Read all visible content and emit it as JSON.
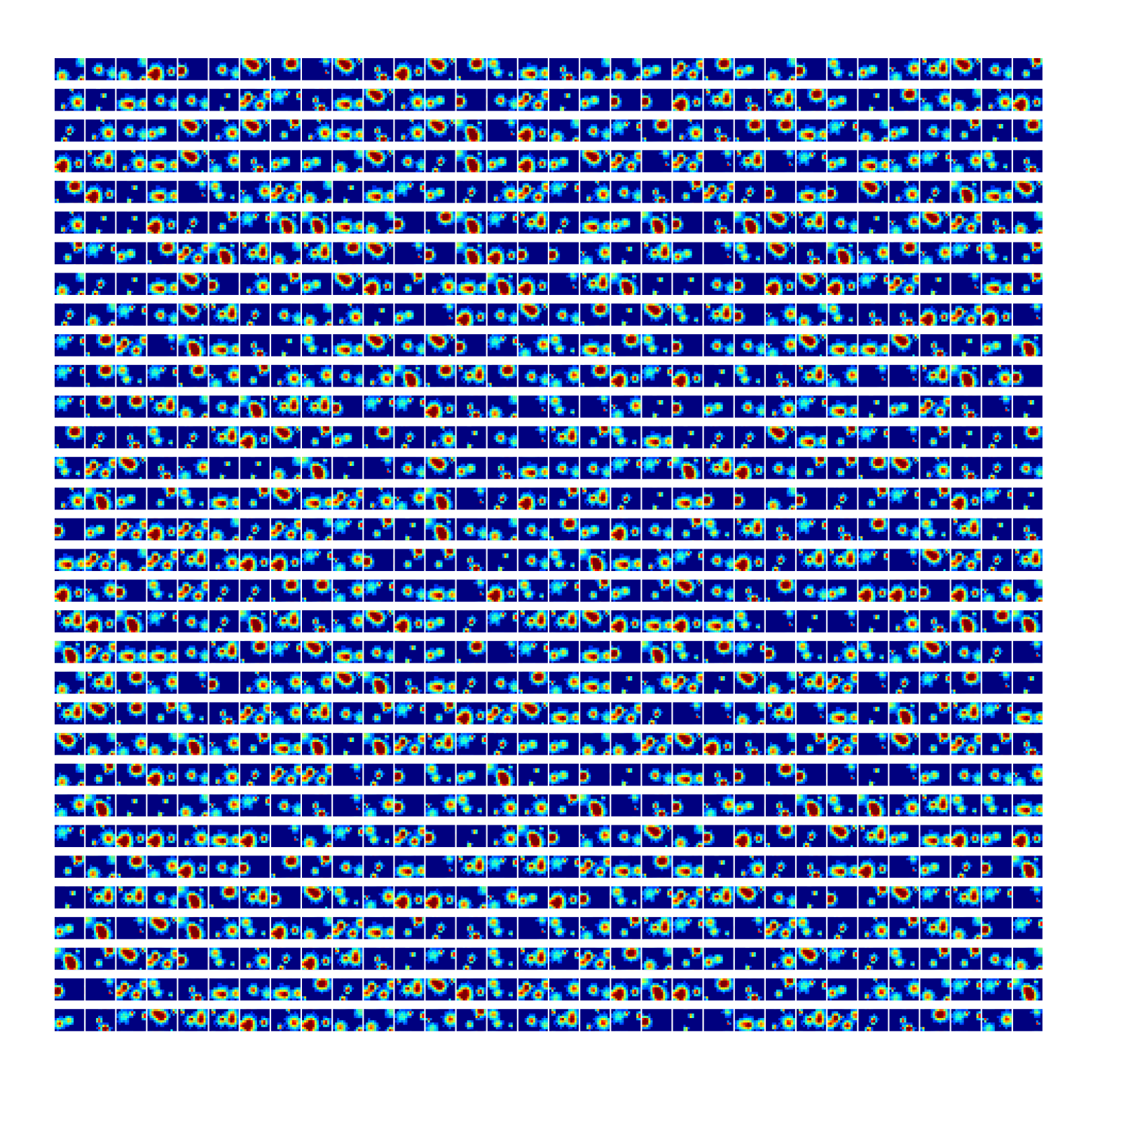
{
  "grid": {
    "rows": 32,
    "columns": 32
  }
}
